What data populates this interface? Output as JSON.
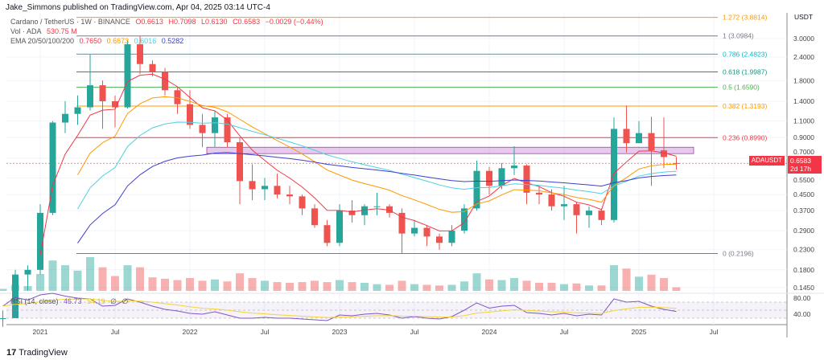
{
  "header": {
    "published": "Jake_Simmons published on TradingView.com, Apr 04, 2025 03:14 UTC-4"
  },
  "legend": {
    "symbol": "Cardano / TetherUS · 1W · BINANCE",
    "open": "O0.6613",
    "high": "H0.7098",
    "low": "L0.6130",
    "close": "C0.6583",
    "change": "−0.0029 (−0.44%)",
    "vol_label": "Vol · ADA",
    "vol_value": "530.75 M",
    "ema_label": "EMA 20/50/100/200",
    "ema20": "0.7650",
    "ema50": "0.6673",
    "ema100": "0.6016",
    "ema200": "0.5282",
    "rsi_label": "RSI (14, close)",
    "rsi_value": "46.73",
    "rsi_ma": "54.19",
    "rsi_na1": "∅",
    "rsi_na2": "∅"
  },
  "colors": {
    "up": "#26a69a",
    "down": "#ef5350",
    "ema20": "#f23645",
    "ema50": "#ff9800",
    "ema100": "#4dd0e1",
    "ema200": "#3f3fd0",
    "rsi": "#7e57c2",
    "rsi_ma": "#f5d33a",
    "zone": "#ce93d8"
  },
  "price_tag": {
    "symbol": "ADAUSDT",
    "price": "0.6583",
    "countdown": "2d 17h"
  },
  "logo": "TradingView",
  "chart_data": {
    "type": "candlestick",
    "interval": "monthly approximation of weekly chart",
    "yscale": "log",
    "ylim": [
      0.13,
      4.0
    ],
    "currency": "USDT",
    "yticks": [
      "3.0000",
      "2.4000",
      "1.8000",
      "1.4000",
      "1.1000",
      "0.9000",
      "0.7000",
      "0.5500",
      "0.4500",
      "0.3700",
      "0.2900",
      "0.2300",
      "0.1800",
      "0.1450"
    ],
    "xticks": [
      {
        "label": "2021",
        "date": "2021-01"
      },
      {
        "label": "Jul",
        "date": "2021-07"
      },
      {
        "label": "2022",
        "date": "2022-01"
      },
      {
        "label": "Jul",
        "date": "2022-07"
      },
      {
        "label": "2023",
        "date": "2023-01"
      },
      {
        "label": "Jul",
        "date": "2023-07"
      },
      {
        "label": "2024",
        "date": "2024-01"
      },
      {
        "label": "Jul",
        "date": "2024-07"
      },
      {
        "label": "2025",
        "date": "2025-01"
      },
      {
        "label": "Jul",
        "date": "2025-07"
      }
    ],
    "start": "2020-10",
    "ohlc": [
      [
        0.1,
        0.11,
        0.09,
        0.1
      ],
      [
        0.1,
        0.18,
        0.1,
        0.17
      ],
      [
        0.17,
        0.19,
        0.14,
        0.18
      ],
      [
        0.18,
        0.4,
        0.17,
        0.36
      ],
      [
        0.36,
        1.1,
        0.35,
        1.08
      ],
      [
        1.08,
        1.4,
        0.95,
        1.2
      ],
      [
        1.2,
        1.5,
        1.05,
        1.3
      ],
      [
        1.3,
        2.47,
        1.25,
        1.7
      ],
      [
        1.7,
        1.8,
        1.0,
        1.4
      ],
      [
        1.4,
        1.5,
        1.02,
        1.3
      ],
      [
        1.3,
        2.95,
        1.28,
        2.8
      ],
      [
        2.8,
        3.1,
        1.95,
        2.2
      ],
      [
        2.2,
        2.3,
        1.9,
        2.0
      ],
      [
        2.0,
        2.1,
        1.5,
        1.6
      ],
      [
        1.6,
        1.65,
        1.2,
        1.35
      ],
      [
        1.35,
        1.6,
        1.0,
        1.05
      ],
      [
        1.05,
        1.2,
        0.8,
        0.95
      ],
      [
        0.95,
        1.25,
        0.8,
        1.15
      ],
      [
        1.15,
        1.2,
        0.8,
        0.85
      ],
      [
        0.85,
        0.9,
        0.4,
        0.53
      ],
      [
        0.53,
        0.65,
        0.42,
        0.48
      ],
      [
        0.48,
        0.55,
        0.42,
        0.5
      ],
      [
        0.5,
        0.58,
        0.43,
        0.45
      ],
      [
        0.45,
        0.5,
        0.4,
        0.44
      ],
      [
        0.44,
        0.45,
        0.35,
        0.38
      ],
      [
        0.38,
        0.4,
        0.3,
        0.31
      ],
      [
        0.31,
        0.33,
        0.24,
        0.25
      ],
      [
        0.25,
        0.4,
        0.24,
        0.37
      ],
      [
        0.37,
        0.42,
        0.32,
        0.35
      ],
      [
        0.35,
        0.4,
        0.31,
        0.39
      ],
      [
        0.39,
        0.46,
        0.35,
        0.39
      ],
      [
        0.39,
        0.4,
        0.34,
        0.36
      ],
      [
        0.36,
        0.38,
        0.22,
        0.28
      ],
      [
        0.28,
        0.33,
        0.27,
        0.3
      ],
      [
        0.3,
        0.31,
        0.24,
        0.27
      ],
      [
        0.27,
        0.28,
        0.23,
        0.25
      ],
      [
        0.25,
        0.31,
        0.24,
        0.29
      ],
      [
        0.29,
        0.4,
        0.28,
        0.38
      ],
      [
        0.38,
        0.68,
        0.37,
        0.6
      ],
      [
        0.6,
        0.63,
        0.45,
        0.5
      ],
      [
        0.5,
        0.66,
        0.48,
        0.62
      ],
      [
        0.62,
        0.81,
        0.57,
        0.64
      ],
      [
        0.64,
        0.65,
        0.4,
        0.46
      ],
      [
        0.46,
        0.5,
        0.4,
        0.45
      ],
      [
        0.45,
        0.48,
        0.37,
        0.39
      ],
      [
        0.39,
        0.5,
        0.33,
        0.4
      ],
      [
        0.4,
        0.41,
        0.28,
        0.35
      ],
      [
        0.35,
        0.39,
        0.3,
        0.37
      ],
      [
        0.37,
        0.38,
        0.31,
        0.33
      ],
      [
        0.33,
        1.15,
        0.32,
        1.0
      ],
      [
        1.0,
        1.33,
        0.75,
        0.84
      ],
      [
        0.84,
        1.1,
        0.85,
        0.95
      ],
      [
        0.95,
        1.16,
        0.5,
        0.77
      ],
      [
        0.77,
        1.15,
        0.62,
        0.71
      ],
      [
        0.66,
        0.71,
        0.61,
        0.6583
      ]
    ],
    "volume_m": [
      300,
      900,
      700,
      2500,
      4500,
      3800,
      3000,
      5000,
      3500,
      2200,
      3800,
      3500,
      2000,
      1800,
      1600,
      1900,
      1500,
      1700,
      1400,
      2600,
      1900,
      1500,
      1300,
      1200,
      1300,
      1500,
      1300,
      1600,
      1300,
      1200,
      1000,
      900,
      1500,
      1000,
      900,
      800,
      900,
      1400,
      2600,
      1700,
      1600,
      1900,
      1500,
      1200,
      1200,
      1000,
      1100,
      800,
      800,
      3800,
      3300,
      2100,
      2400,
      1900,
      530.75
    ],
    "rsi": [
      60,
      82,
      75,
      88,
      92,
      85,
      80,
      78,
      60,
      62,
      78,
      70,
      60,
      52,
      48,
      42,
      40,
      46,
      38,
      30,
      30,
      32,
      30,
      30,
      28,
      26,
      24,
      38,
      36,
      40,
      42,
      38,
      30,
      34,
      30,
      28,
      34,
      50,
      68,
      55,
      60,
      62,
      44,
      42,
      38,
      42,
      36,
      40,
      38,
      78,
      70,
      72,
      60,
      52,
      46.73
    ],
    "fib_levels": [
      {
        "ratio": "1.272",
        "price": "3.8814",
        "value": 3.8814,
        "color": "#ff9800"
      },
      {
        "ratio": "1",
        "price": "3.0984",
        "value": 3.0984,
        "color": "#787b86"
      },
      {
        "ratio": "0.786",
        "price": "2.4823",
        "value": 2.4823,
        "color": "#00bcd4"
      },
      {
        "ratio": "0.618",
        "price": "1.9987",
        "value": 1.9987,
        "color": "#089981"
      },
      {
        "ratio": "0.5",
        "price": "1.6590",
        "value": 1.659,
        "color": "#4caf50"
      },
      {
        "ratio": "0.382",
        "price": "1.3193",
        "value": 1.3193,
        "color": "#ff9800"
      },
      {
        "ratio": "0.236",
        "price": "0.8990",
        "value": 0.899,
        "color": "#f23645"
      },
      {
        "ratio": "0",
        "price": "0.2196",
        "value": 0.2196,
        "color": "#787b86"
      }
    ],
    "resistance_zone": [
      0.74,
      0.8
    ],
    "rsi_ticks": [
      "80.00",
      "40.00"
    ],
    "last_price": 0.6583
  }
}
